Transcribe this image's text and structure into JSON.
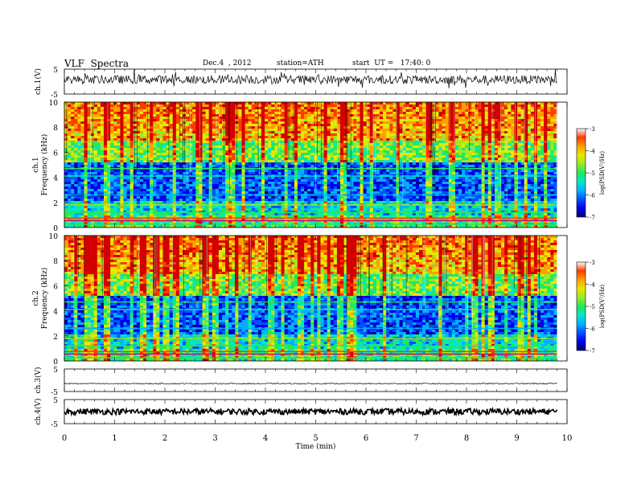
{
  "header": {
    "title": "VLF  Spectra",
    "date": "Dec.4  , 2012",
    "station": "station=ATH",
    "start": "start  UT =   17:40: 0"
  },
  "chart_data": [
    {
      "type": "line",
      "panel": "ch1-waveform",
      "ylabel": "ch.1(V)",
      "ylim": [
        -5,
        5
      ],
      "yticks": [
        "5",
        "-5"
      ],
      "xlim": [
        0,
        10
      ],
      "series": [
        {
          "values_description_free": true,
          "level": 0.8,
          "noise": 0.35
        }
      ]
    },
    {
      "type": "heatmap",
      "panel": "ch1-spectrogram",
      "ylabel": "Frequency  (kHz)",
      "channel_label": "ch.1",
      "ylim": [
        0,
        10
      ],
      "yticks": [
        "0",
        "2",
        "4",
        "6",
        "8",
        "10"
      ],
      "xlim": [
        0,
        9.8
      ],
      "colorbar": {
        "label": "log(PSD(V²/Hz)",
        "range": [
          -7,
          -3
        ],
        "ticks": [
          "-3",
          "-4",
          "-5",
          "-6",
          "-7"
        ]
      }
    },
    {
      "type": "heatmap",
      "panel": "ch2-spectrogram",
      "ylabel": "Frequency  (kHz)",
      "channel_label": "ch.2",
      "ylim": [
        0,
        10
      ],
      "yticks": [
        "0",
        "2",
        "4",
        "6",
        "8",
        "10"
      ],
      "xlim": [
        0,
        9.8
      ],
      "colorbar": {
        "label": "log(PSD(V²/Hz)",
        "range": [
          -7,
          -3
        ],
        "ticks": [
          "-3",
          "-4",
          "-5",
          "-6",
          "-7"
        ]
      }
    },
    {
      "type": "line",
      "panel": "ch3-waveform",
      "ylabel": "ch.3(V)",
      "ylim": [
        -5,
        5
      ],
      "yticks": [
        "5",
        "-5"
      ],
      "xlim": [
        0,
        10
      ],
      "series": [
        {
          "level": -1.5,
          "noise": 0.05
        }
      ]
    },
    {
      "type": "line",
      "panel": "ch4-waveform",
      "ylabel": "ch.4(V)",
      "ylim": [
        -5,
        5
      ],
      "yticks": [
        "5",
        "-5"
      ],
      "xlim": [
        0,
        10
      ],
      "series": [
        {
          "level": 0,
          "noise": 0.25
        }
      ]
    }
  ],
  "xaxis": {
    "label": "Time  (min)",
    "ticks": [
      "0",
      "1",
      "2",
      "3",
      "4",
      "5",
      "6",
      "7",
      "8",
      "9",
      "10"
    ],
    "range": [
      0,
      10
    ]
  },
  "colors": {
    "colormap": [
      "#00007a",
      "#0000e6",
      "#0050ff",
      "#00b0ff",
      "#00e8c8",
      "#22e85a",
      "#9ae82a",
      "#e8e800",
      "#ffa000",
      "#ff3a00",
      "#d20000",
      "#ffffff"
    ]
  }
}
